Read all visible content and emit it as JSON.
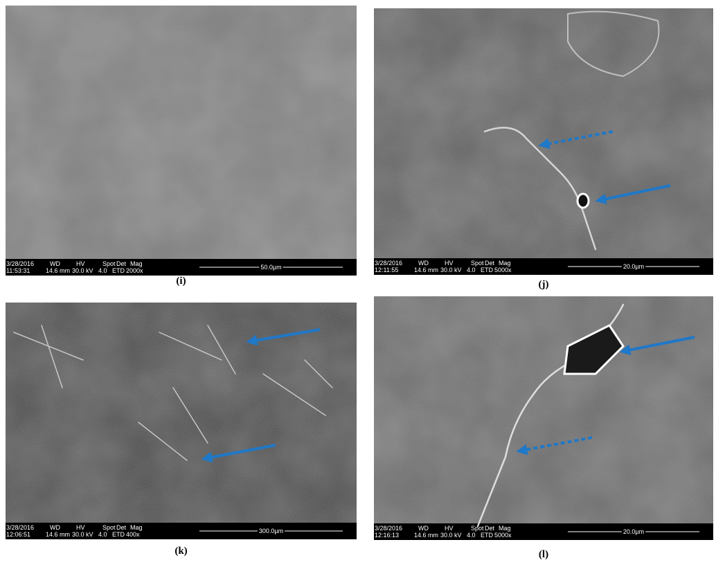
{
  "panels": [
    {
      "label": "(i)",
      "info": {
        "date": "3/28/2016",
        "time": "11:53:31",
        "wd_head": "WD",
        "wd": "14.6 mm",
        "hv_head": "HV",
        "hv": "30.0 kV",
        "spot_head": "Spot",
        "spot": "4.0",
        "det_head": "Det",
        "det": "ETD",
        "mag_head": "Mag",
        "mag": "2000x",
        "scale": "50.0µm"
      }
    },
    {
      "label": "(j)",
      "info": {
        "date": "3/28/2016",
        "time": "12:11:55",
        "wd_head": "WD",
        "wd": "14.6 mm",
        "hv_head": "HV",
        "hv": "30.0 kV",
        "spot_head": "Spot",
        "spot": "4.0",
        "det_head": "Det",
        "det": "ETD",
        "mag_head": "Mag",
        "mag": "5000x",
        "scale": "20.0µm"
      }
    },
    {
      "label": "(k)",
      "info": {
        "date": "3/28/2016",
        "time": "12:06:51",
        "wd_head": "WD",
        "wd": "14.6 mm",
        "hv_head": "HV",
        "hv": "30.0 kV",
        "spot_head": "Spot",
        "spot": "4.0",
        "det_head": "Det",
        "det": "ETD",
        "mag_head": "Mag",
        "mag": "400x",
        "scale": "300.0µm"
      }
    },
    {
      "label": "(l)",
      "info": {
        "date": "3/28/2016",
        "time": "12:16:13",
        "wd_head": "WD",
        "wd": "14.6 mm",
        "hv_head": "HV",
        "hv": "30.0 kV",
        "spot_head": "Spot",
        "spot": "4.0",
        "det_head": "Det",
        "det": "ETD",
        "mag_head": "Mag",
        "mag": "5000x",
        "scale": "20.0µm"
      }
    }
  ]
}
